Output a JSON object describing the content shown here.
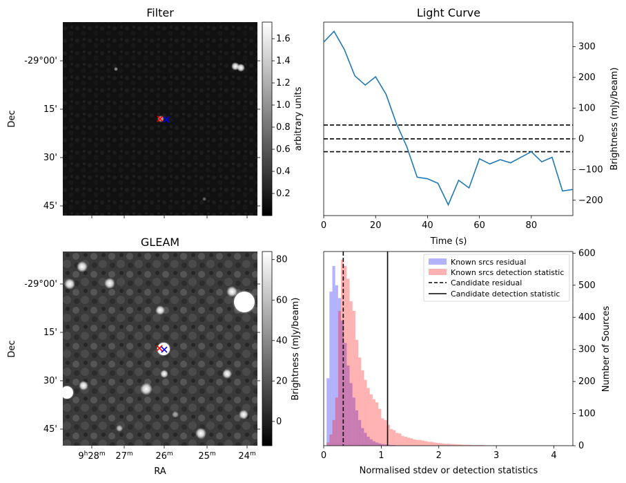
{
  "chart_data": [
    {
      "type": "heatmap",
      "title": "Filter",
      "ylabel": "Dec",
      "y_ticks": [
        "-29°00'",
        "15'",
        "30'",
        "45'"
      ],
      "colorbar": {
        "label": "arbitrary units",
        "range": [
          0.0,
          1.75
        ],
        "ticks": [
          "0.2",
          "0.4",
          "0.6",
          "0.8",
          "1.0",
          "1.2",
          "1.4",
          "1.6"
        ]
      },
      "markers": [
        "red-x",
        "blue-x"
      ]
    },
    {
      "type": "line",
      "title": "Light Curve",
      "xlabel": "Time (s)",
      "ylabel": "Brightness (mJy/beam)",
      "xlim": [
        0,
        96
      ],
      "ylim": [
        -250,
        380
      ],
      "x_ticks": [
        "0",
        "20",
        "40",
        "60",
        "80"
      ],
      "y_ticks": [
        "-200",
        "-100",
        "0",
        "100",
        "200",
        "300"
      ],
      "color": "#1f77b4",
      "series": [
        {
          "x": [
            0,
            4,
            8,
            12,
            16,
            20,
            24,
            28,
            32,
            36,
            40,
            44,
            48,
            52,
            56,
            60,
            64,
            68,
            72,
            76,
            80,
            84,
            88,
            92,
            96
          ],
          "values": [
            315,
            350,
            290,
            205,
            175,
            202,
            145,
            50,
            -25,
            -125,
            -130,
            -145,
            -215,
            -135,
            -160,
            -65,
            -82,
            -68,
            -78,
            -60,
            -42,
            -75,
            -60,
            -170,
            -165
          ]
        }
      ],
      "hlines": [
        {
          "y": 45,
          "style": "dashed"
        },
        {
          "y": 0,
          "style": "dashed"
        },
        {
          "y": -42,
          "style": "dashed"
        }
      ]
    },
    {
      "type": "heatmap",
      "title": "GLEAM",
      "xlabel": "RA",
      "ylabel": "Dec",
      "x_ticks": [
        "9h28m",
        "27m",
        "26m",
        "25m",
        "24m"
      ],
      "y_ticks": [
        "-29°00'",
        "15'",
        "30'",
        "45'"
      ],
      "colorbar": {
        "label": "Brightness (mJy/beam)",
        "range": [
          -12,
          84
        ],
        "ticks": [
          "0",
          "20",
          "40",
          "60",
          "80"
        ]
      },
      "markers": [
        "red-x",
        "blue-x"
      ]
    },
    {
      "type": "bar",
      "xlabel": "Normalised stdev or detection statistics",
      "ylabel": "Number of Sources",
      "xlim": [
        0,
        4.33
      ],
      "ylim": [
        0,
        605
      ],
      "x_ticks": [
        "0",
        "1",
        "2",
        "3",
        "4"
      ],
      "y_ticks": [
        "0",
        "100",
        "200",
        "300",
        "400",
        "500",
        "600"
      ],
      "bin_width": 0.05,
      "series": [
        {
          "name": "Known srcs residual",
          "color": "#0000ff",
          "bin_start": 0.05,
          "values": [
            210,
            480,
            560,
            500,
            460,
            390,
            320,
            250,
            195,
            150,
            110,
            80,
            55,
            40,
            28,
            20,
            14,
            10,
            7,
            5,
            4,
            3,
            2,
            2,
            1
          ]
        },
        {
          "name": "Known srcs detection statistic",
          "color": "#ff0000",
          "bin_start": 0.05,
          "values": [
            10,
            35,
            80,
            150,
            420,
            580,
            560,
            520,
            450,
            420,
            330,
            275,
            235,
            205,
            180,
            160,
            145,
            135,
            115,
            85,
            80,
            65,
            52,
            48,
            40,
            38,
            30,
            28,
            25,
            23,
            20,
            18,
            18,
            16,
            14,
            12,
            12,
            10,
            9,
            8,
            7,
            6,
            6,
            5,
            5,
            4,
            4,
            3,
            3,
            3,
            2,
            2,
            2,
            2,
            2,
            1,
            1,
            1,
            1,
            1,
            1,
            1,
            1,
            1,
            1,
            1,
            1,
            1,
            1,
            1,
            1,
            1,
            1,
            1,
            1,
            1,
            1,
            1,
            1,
            1,
            1,
            1,
            1,
            1,
            1
          ]
        }
      ],
      "vlines": [
        {
          "name": "Candidate residual",
          "x": 0.34,
          "style": "dashed"
        },
        {
          "name": "Candidate detection statistic",
          "x": 1.11,
          "style": "solid"
        }
      ],
      "legend_position": "top-right"
    }
  ]
}
